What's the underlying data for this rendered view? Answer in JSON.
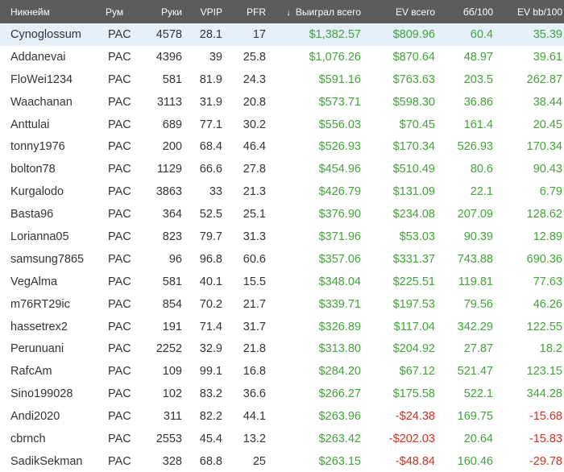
{
  "colors": {
    "header_bg": "#5c5c5c",
    "positive": "#3fa535",
    "negative": "#e02a1d",
    "selected_row": "#e6f0fb"
  },
  "headers": {
    "nick": "Никнейм",
    "room": "Рум",
    "hands": "Руки",
    "vpip": "VPIP",
    "pfr": "PFR",
    "won": "Выиграл всего",
    "ev": "EV всего",
    "bb100": "бб/100",
    "evbb100": "EV bb/100",
    "sort_icon": "↓"
  },
  "rows": [
    {
      "nick": "Cynoglossum",
      "room": "PAC",
      "hands": "4578",
      "vpip": "28.1",
      "pfr": "17",
      "won": "$1,382.57",
      "ev": "$809.96",
      "bb100": "60.4",
      "evbb100": "35.39",
      "ev_neg": false,
      "bb_neg": false,
      "evbb_neg": false
    },
    {
      "nick": "Addanevai",
      "room": "PAC",
      "hands": "4396",
      "vpip": "39",
      "pfr": "25.8",
      "won": "$1,076.26",
      "ev": "$870.64",
      "bb100": "48.97",
      "evbb100": "39.61",
      "ev_neg": false,
      "bb_neg": false,
      "evbb_neg": false
    },
    {
      "nick": "FloWei1234",
      "room": "PAC",
      "hands": "581",
      "vpip": "81.9",
      "pfr": "24.3",
      "won": "$591.16",
      "ev": "$763.63",
      "bb100": "203.5",
      "evbb100": "262.87",
      "ev_neg": false,
      "bb_neg": false,
      "evbb_neg": false
    },
    {
      "nick": "Waachanan",
      "room": "PAC",
      "hands": "3113",
      "vpip": "31.9",
      "pfr": "20.8",
      "won": "$573.71",
      "ev": "$598.30",
      "bb100": "36.86",
      "evbb100": "38.44",
      "ev_neg": false,
      "bb_neg": false,
      "evbb_neg": false
    },
    {
      "nick": "Anttulai",
      "room": "PAC",
      "hands": "689",
      "vpip": "77.1",
      "pfr": "30.2",
      "won": "$556.03",
      "ev": "$70.45",
      "bb100": "161.4",
      "evbb100": "20.45",
      "ev_neg": false,
      "bb_neg": false,
      "evbb_neg": false
    },
    {
      "nick": "tonny1976",
      "room": "PAC",
      "hands": "200",
      "vpip": "68.4",
      "pfr": "46.4",
      "won": "$526.93",
      "ev": "$170.34",
      "bb100": "526.93",
      "evbb100": "170.34",
      "ev_neg": false,
      "bb_neg": false,
      "evbb_neg": false
    },
    {
      "nick": "bolton78",
      "room": "PAC",
      "hands": "1129",
      "vpip": "66.6",
      "pfr": "27.8",
      "won": "$454.96",
      "ev": "$510.49",
      "bb100": "80.6",
      "evbb100": "90.43",
      "ev_neg": false,
      "bb_neg": false,
      "evbb_neg": false
    },
    {
      "nick": "Kurgalodo",
      "room": "PAC",
      "hands": "3863",
      "vpip": "33",
      "pfr": "21.3",
      "won": "$426.79",
      "ev": "$131.09",
      "bb100": "22.1",
      "evbb100": "6.79",
      "ev_neg": false,
      "bb_neg": false,
      "evbb_neg": false
    },
    {
      "nick": "Basta96",
      "room": "PAC",
      "hands": "364",
      "vpip": "52.5",
      "pfr": "25.1",
      "won": "$376.90",
      "ev": "$234.08",
      "bb100": "207.09",
      "evbb100": "128.62",
      "ev_neg": false,
      "bb_neg": false,
      "evbb_neg": false
    },
    {
      "nick": "Lorianna05",
      "room": "PAC",
      "hands": "823",
      "vpip": "79.7",
      "pfr": "31.3",
      "won": "$371.96",
      "ev": "$53.03",
      "bb100": "90.39",
      "evbb100": "12.89",
      "ev_neg": false,
      "bb_neg": false,
      "evbb_neg": false
    },
    {
      "nick": "samsung7865",
      "room": "PAC",
      "hands": "96",
      "vpip": "96.8",
      "pfr": "60.6",
      "won": "$357.06",
      "ev": "$331.37",
      "bb100": "743.88",
      "evbb100": "690.36",
      "ev_neg": false,
      "bb_neg": false,
      "evbb_neg": false
    },
    {
      "nick": "VegAlma",
      "room": "PAC",
      "hands": "581",
      "vpip": "40.1",
      "pfr": "15.5",
      "won": "$348.04",
      "ev": "$225.51",
      "bb100": "119.81",
      "evbb100": "77.63",
      "ev_neg": false,
      "bb_neg": false,
      "evbb_neg": false
    },
    {
      "nick": "m76RT29ic",
      "room": "PAC",
      "hands": "854",
      "vpip": "70.2",
      "pfr": "21.7",
      "won": "$339.71",
      "ev": "$197.53",
      "bb100": "79.56",
      "evbb100": "46.26",
      "ev_neg": false,
      "bb_neg": false,
      "evbb_neg": false
    },
    {
      "nick": "hassetrex2",
      "room": "PAC",
      "hands": "191",
      "vpip": "71.4",
      "pfr": "31.7",
      "won": "$326.89",
      "ev": "$117.04",
      "bb100": "342.29",
      "evbb100": "122.55",
      "ev_neg": false,
      "bb_neg": false,
      "evbb_neg": false
    },
    {
      "nick": "Perunuani",
      "room": "PAC",
      "hands": "2252",
      "vpip": "32.9",
      "pfr": "21.8",
      "won": "$313.80",
      "ev": "$204.92",
      "bb100": "27.87",
      "evbb100": "18.2",
      "ev_neg": false,
      "bb_neg": false,
      "evbb_neg": false
    },
    {
      "nick": "RafcAm",
      "room": "PAC",
      "hands": "109",
      "vpip": "99.1",
      "pfr": "16.8",
      "won": "$284.20",
      "ev": "$67.12",
      "bb100": "521.47",
      "evbb100": "123.15",
      "ev_neg": false,
      "bb_neg": false,
      "evbb_neg": false
    },
    {
      "nick": "Sino199028",
      "room": "PAC",
      "hands": "102",
      "vpip": "83.2",
      "pfr": "36.6",
      "won": "$266.27",
      "ev": "$175.58",
      "bb100": "522.1",
      "evbb100": "344.28",
      "ev_neg": false,
      "bb_neg": false,
      "evbb_neg": false
    },
    {
      "nick": "Andi2020",
      "room": "PAC",
      "hands": "311",
      "vpip": "82.2",
      "pfr": "44.1",
      "won": "$263.96",
      "ev": "-$24.38",
      "bb100": "169.75",
      "evbb100": "-15.68",
      "ev_neg": true,
      "bb_neg": false,
      "evbb_neg": true
    },
    {
      "nick": "cbrnch",
      "room": "PAC",
      "hands": "2553",
      "vpip": "45.4",
      "pfr": "13.2",
      "won": "$263.42",
      "ev": "-$202.03",
      "bb100": "20.64",
      "evbb100": "-15.83",
      "ev_neg": true,
      "bb_neg": false,
      "evbb_neg": true
    },
    {
      "nick": "SadikSekman",
      "room": "PAC",
      "hands": "328",
      "vpip": "68.8",
      "pfr": "25",
      "won": "$263.15",
      "ev": "-$48.84",
      "bb100": "160.46",
      "evbb100": "-29.78",
      "ev_neg": true,
      "bb_neg": false,
      "evbb_neg": true
    }
  ]
}
